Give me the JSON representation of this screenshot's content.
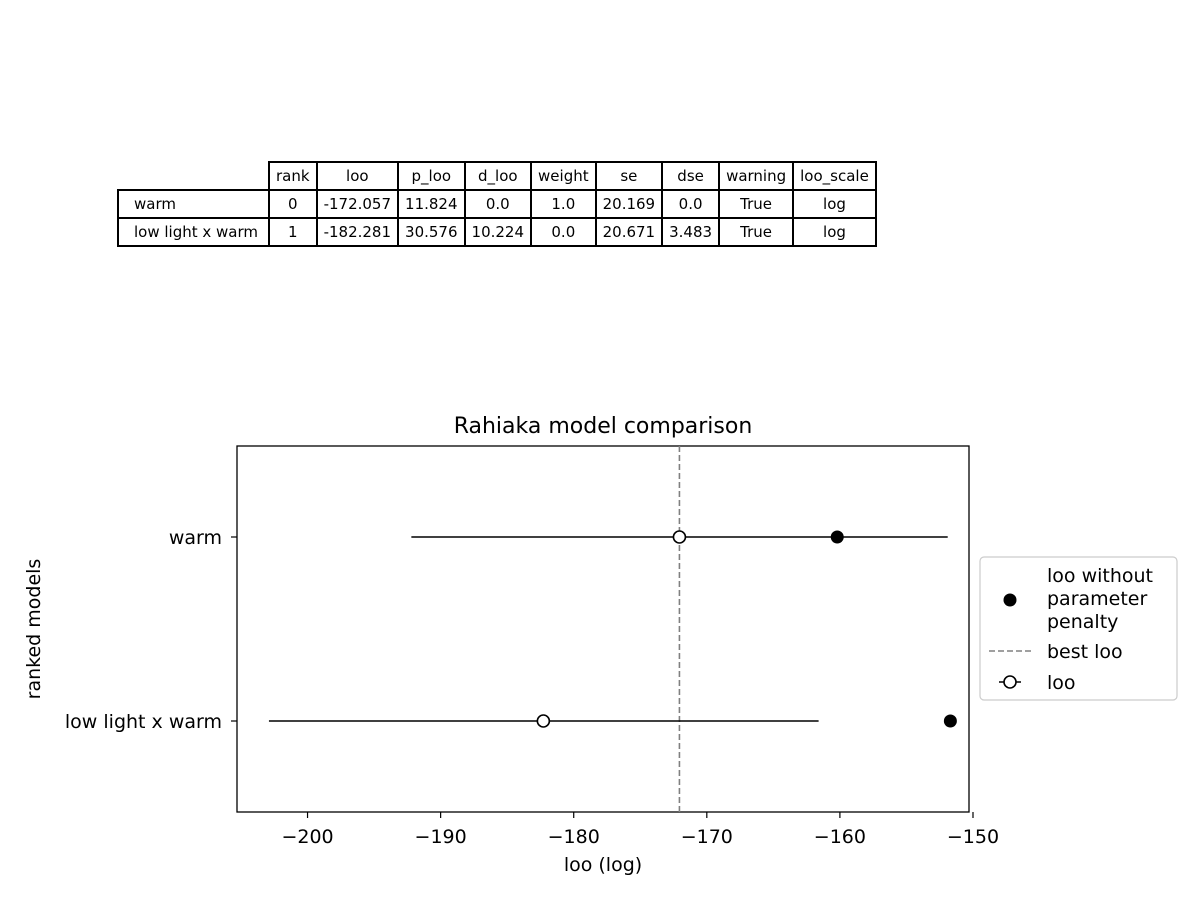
{
  "table": {
    "columns": [
      "rank",
      "loo",
      "p_loo",
      "d_loo",
      "weight",
      "se",
      "dse",
      "warning",
      "loo_scale"
    ],
    "rows": [
      {
        "label": "warm",
        "cells": [
          "0",
          "-172.057",
          "11.824",
          "0.0",
          "1.0",
          "20.169",
          "0.0",
          "True",
          "log"
        ]
      },
      {
        "label": "low light x warm",
        "cells": [
          "1",
          "-182.281",
          "30.576",
          "10.224",
          "0.0",
          "20.671",
          "3.483",
          "True",
          "log"
        ]
      }
    ]
  },
  "chart_data": {
    "type": "scatter",
    "title": "Rahiaka model comparison",
    "xlabel": "loo (log)",
    "ylabel": "ranked models",
    "xlim": [
      -205.3,
      -150.3
    ],
    "x_ticks": [
      -200,
      -190,
      -180,
      -170,
      -160,
      -150
    ],
    "categories": [
      "warm",
      "low light x warm"
    ],
    "best_loo": -172.057,
    "series": [
      {
        "name": "loo without parameter penalty",
        "marker": "filled-circle",
        "values": [
          -160.2,
          -151.7
        ]
      },
      {
        "name": "loo",
        "marker": "open-circle",
        "values": [
          -172.057,
          -182.281
        ],
        "error_low": [
          -192.2,
          -202.9
        ],
        "error_high": [
          -151.9,
          -161.6
        ]
      }
    ],
    "legend": {
      "placement": "right-outside",
      "entries": [
        "loo without\nparameter\npenalty",
        "best loo",
        "loo"
      ]
    },
    "grid": false,
    "colors": {
      "points": "#000000",
      "best_loo_line": "#808080"
    }
  }
}
